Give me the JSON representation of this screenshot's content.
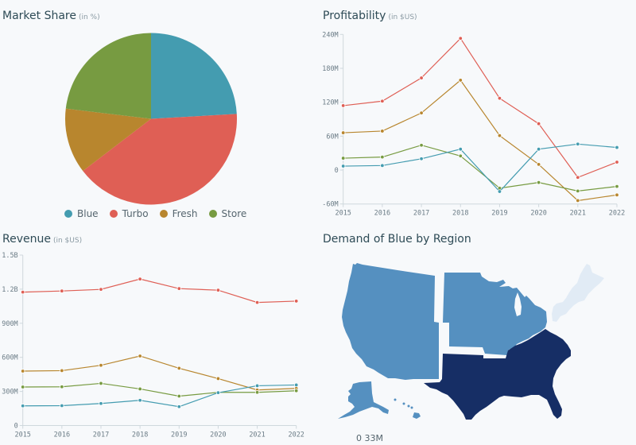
{
  "colors": {
    "Blue": "#449cb0",
    "Turbo": "#df5f55",
    "Fresh": "#b8862e",
    "Store": "#779b41"
  },
  "market_share": {
    "title": "Market Share",
    "unit": "(in %)"
  },
  "profitability": {
    "title": "Profitability",
    "unit": "(in $US)"
  },
  "revenue": {
    "title": "Revenue",
    "unit": "(in $US)"
  },
  "demand": {
    "title": "Demand of Blue by Region",
    "legend_min": "0",
    "legend_max": "33M"
  },
  "chart_data": [
    {
      "type": "pie",
      "title": "Market Share",
      "subtitle": "(in %)",
      "categories": [
        "Blue",
        "Turbo",
        "Fresh",
        "Store"
      ],
      "values": [
        24.1,
        40.5,
        12.3,
        23.1
      ],
      "legend": "bottom"
    },
    {
      "type": "line",
      "title": "Profitability",
      "subtitle": "(in $US)",
      "x": [
        "2015",
        "2016",
        "2017",
        "2018",
        "2019",
        "2020",
        "2021",
        "2022"
      ],
      "ylim": [
        -60,
        240
      ],
      "yticks": [
        {
          "v": 240,
          "label": "240M"
        },
        {
          "v": 180,
          "label": "180M"
        },
        {
          "v": 120,
          "label": "120M"
        },
        {
          "v": 60,
          "label": "60M"
        },
        {
          "v": 0,
          "label": "0"
        },
        {
          "v": -60,
          "label": "-60M"
        }
      ],
      "series": [
        {
          "name": "Turbo",
          "values": [
            114,
            122,
            163,
            233,
            127,
            82,
            -13,
            14
          ]
        },
        {
          "name": "Fresh",
          "values": [
            66,
            69,
            101,
            159,
            61,
            10,
            -54,
            -44
          ]
        },
        {
          "name": "Store",
          "values": [
            21,
            23,
            44,
            25,
            -32,
            -22,
            -37,
            -29
          ]
        },
        {
          "name": "Blue",
          "values": [
            7,
            8,
            20,
            37,
            -38,
            37,
            46,
            40
          ]
        }
      ]
    },
    {
      "type": "line",
      "title": "Revenue",
      "subtitle": "(in $US)",
      "x": [
        "2015",
        "2016",
        "2017",
        "2018",
        "2019",
        "2020",
        "2021",
        "2022"
      ],
      "ylim": [
        0,
        1500
      ],
      "yticks": [
        {
          "v": 1500,
          "label": "1.5B"
        },
        {
          "v": 1200,
          "label": "1.2B"
        },
        {
          "v": 900,
          "label": "900M"
        },
        {
          "v": 600,
          "label": "600M"
        },
        {
          "v": 300,
          "label": "300M"
        },
        {
          "v": 0,
          "label": "0"
        }
      ],
      "series": [
        {
          "name": "Turbo",
          "values": [
            1174,
            1184,
            1198,
            1289,
            1205,
            1191,
            1083,
            1095
          ]
        },
        {
          "name": "Fresh",
          "values": [
            479,
            483,
            530,
            612,
            504,
            413,
            313,
            327
          ]
        },
        {
          "name": "Store",
          "values": [
            339,
            341,
            371,
            322,
            259,
            292,
            292,
            306
          ]
        },
        {
          "name": "Blue",
          "values": [
            173,
            175,
            194,
            222,
            166,
            289,
            350,
            357
          ]
        }
      ]
    },
    {
      "type": "map",
      "title": "Demand of Blue by Region",
      "regions": [
        {
          "name": "West",
          "level": "medium",
          "color": "#5590c0"
        },
        {
          "name": "Midwest",
          "level": "medium",
          "color": "#5590c0"
        },
        {
          "name": "South",
          "level": "high",
          "color": "#162e65"
        },
        {
          "name": "Northeast",
          "level": "low",
          "color": "#e1ebf5"
        }
      ],
      "scale": [
        "0",
        "33M"
      ]
    }
  ]
}
